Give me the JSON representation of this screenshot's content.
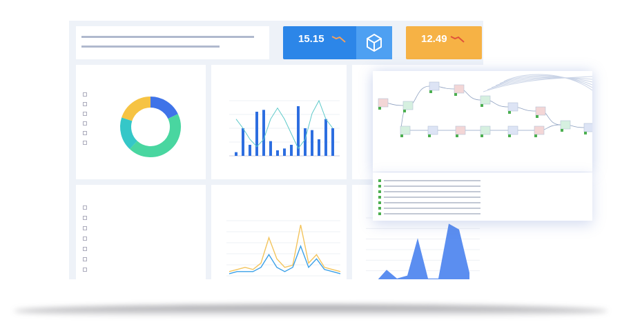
{
  "kpis": [
    {
      "value": "15.15",
      "caption": "",
      "color": "#2c86e8",
      "icon": "cube-icon"
    },
    {
      "value": "12.49",
      "caption": "",
      "color": "#f6b245",
      "icon": "trend-down-icon"
    }
  ],
  "donut": {
    "segments": [
      {
        "value": 18,
        "color": "#3f73e8"
      },
      {
        "value": 44,
        "color": "#49d6a0"
      },
      {
        "value": 18,
        "color": "#35c7c8"
      },
      {
        "value": 20,
        "color": "#f6c343"
      }
    ]
  },
  "bar_chart": {
    "values": [
      4,
      30,
      12,
      48,
      50,
      16,
      6,
      8,
      12,
      54,
      30,
      28,
      18,
      40,
      30
    ],
    "line": [
      40,
      30,
      18,
      10,
      18,
      40,
      52,
      40,
      24,
      8,
      18,
      46,
      60,
      40,
      30
    ],
    "ylim": [
      0,
      60
    ],
    "bar_color": "#2d6ee0",
    "line_color": "#5cc9c9"
  },
  "line_chart": {
    "series": [
      {
        "values": [
          2,
          3,
          4,
          3,
          6,
          18,
          8,
          4,
          5,
          24,
          6,
          10,
          4,
          3,
          2
        ],
        "color": "#f3c45c"
      },
      {
        "values": [
          1,
          2,
          2,
          2,
          4,
          10,
          4,
          2,
          4,
          14,
          4,
          8,
          3,
          2,
          1
        ],
        "color": "#3aa0e8"
      }
    ],
    "ylim": [
      0,
      26
    ]
  },
  "area_chart": {
    "values": [
      0,
      0,
      8,
      2,
      4,
      30,
      2,
      2,
      40,
      36,
      6
    ],
    "ylim": [
      0,
      44
    ],
    "color": "#5b8ef0"
  }
}
